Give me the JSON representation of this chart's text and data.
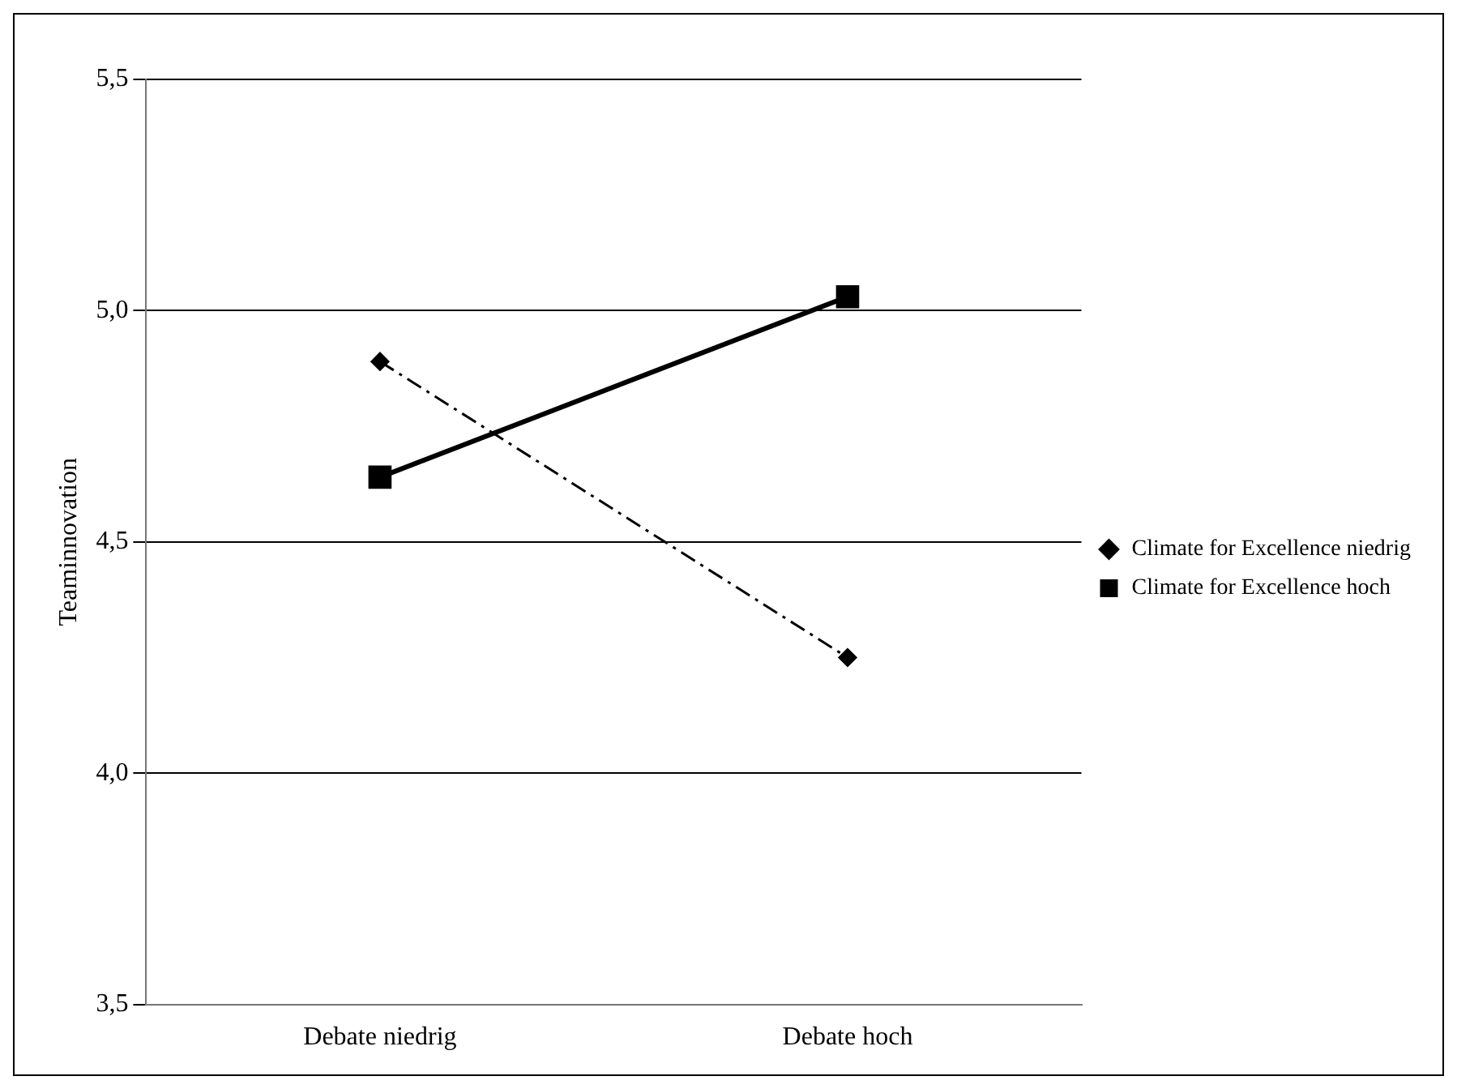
{
  "chart_data": {
    "type": "line",
    "ylabel": "Teaminnovation",
    "categories": [
      "Debate niedrig",
      "Debate hoch"
    ],
    "series": [
      {
        "name": "Climate for Excellence niedrig",
        "color": "#000000",
        "values": [
          4.89,
          4.25
        ],
        "marker": "diamond",
        "line_style": "dashed"
      },
      {
        "name": "Climate for Excellence hoch",
        "color": "#000000",
        "values": [
          4.64,
          5.03
        ],
        "marker": "square",
        "line_style": "solid"
      }
    ],
    "ylim": [
      3.5,
      5.5
    ],
    "yticks": [
      {
        "value": 3.5,
        "label": "3,5"
      },
      {
        "value": 4.0,
        "label": "4,0"
      },
      {
        "value": 4.5,
        "label": "4,5"
      },
      {
        "value": 5.0,
        "label": "5,0"
      },
      {
        "value": 5.5,
        "label": "5,5"
      }
    ],
    "grid": "y",
    "legend": "right"
  }
}
